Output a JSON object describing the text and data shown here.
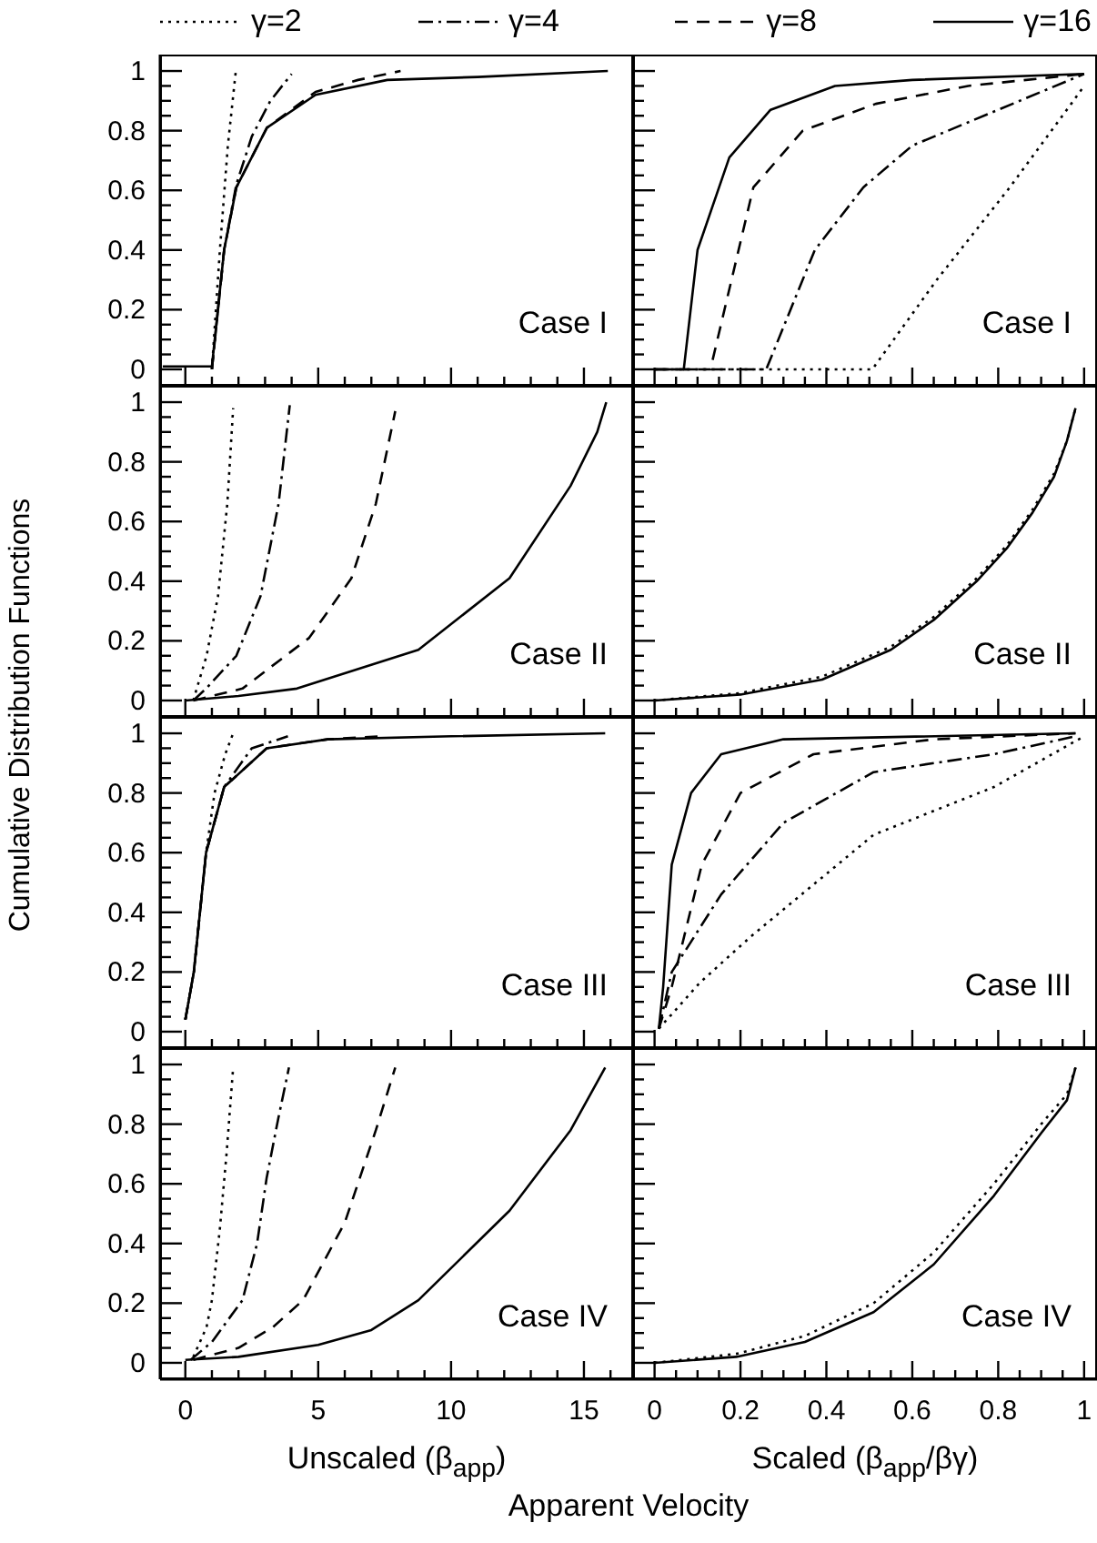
{
  "chart_data": [
    {
      "type": "line",
      "ylabel": "Cumulative Distribution Functions",
      "legend": "top",
      "tick_labels": "y",
      "annotations": [
        "Case I"
      ],
      "xlim": [
        -0.95,
        16.85
      ],
      "ylim": [
        -0.055,
        1.055
      ],
      "xticks": [
        0,
        {
          "value": 1,
          "label": null
        },
        {
          "value": 2,
          "label": null
        },
        {
          "value": 3,
          "label": null
        },
        {
          "value": 4,
          "label": null
        },
        5,
        {
          "value": 6,
          "label": null
        },
        {
          "value": 7,
          "label": null
        },
        {
          "value": 8,
          "label": null
        },
        {
          "value": 9,
          "label": null
        },
        10,
        {
          "value": 11,
          "label": null
        },
        {
          "value": 12,
          "label": null
        },
        {
          "value": 13,
          "label": null
        },
        {
          "value": 14,
          "label": null
        },
        15,
        {
          "value": 16,
          "label": null
        }
      ],
      "yticks": [
        0,
        {
          "value": 0.05,
          "label": null
        },
        {
          "value": 0.1,
          "label": null
        },
        {
          "value": 0.15,
          "label": null
        },
        0.2,
        {
          "value": 0.25,
          "label": null
        },
        {
          "value": 0.3,
          "label": null
        },
        {
          "value": 0.35,
          "label": null
        },
        0.4,
        {
          "value": 0.45,
          "label": null
        },
        {
          "value": 0.5,
          "label": null
        },
        {
          "value": 0.55,
          "label": null
        },
        0.6,
        {
          "value": 0.65,
          "label": null
        },
        {
          "value": 0.7,
          "label": null
        },
        {
          "value": 0.75,
          "label": null
        },
        0.8,
        {
          "value": 0.85,
          "label": null
        },
        {
          "value": 0.9,
          "label": null
        },
        {
          "value": 0.95,
          "label": null
        },
        1
      ],
      "series": [
        {
          "name": "γ=2",
          "color": "#000000",
          "line_style": "dotted",
          "x": [
            1.0,
            1.3,
            1.6,
            1.9
          ],
          "values": [
            0,
            0.4,
            0.75,
            1.0
          ]
        },
        {
          "name": "γ=4",
          "color": "#000000",
          "line_style": "dashdot",
          "x": [
            1.0,
            1.46,
            1.92,
            2.5,
            3.2,
            4.0
          ],
          "values": [
            0,
            0.4,
            0.62,
            0.78,
            0.9,
            0.99
          ]
        },
        {
          "name": "γ=8",
          "color": "#000000",
          "line_style": "dashed",
          "x": [
            1.0,
            1.46,
            1.92,
            3.07,
            4.9,
            6.5,
            8.1
          ],
          "values": [
            0,
            0.4,
            0.61,
            0.81,
            0.93,
            0.97,
            1.0
          ]
        },
        {
          "name": "γ=16",
          "color": "#000000",
          "line_style": "solid",
          "x": [
            -0.85,
            1.0,
            1.46,
            1.92,
            3.07,
            4.9,
            7.6,
            11,
            15.9
          ],
          "values": [
            0.01,
            0.01,
            0.4,
            0.61,
            0.81,
            0.92,
            0.97,
            0.98,
            1.0
          ]
        }
      ]
    },
    {
      "type": "line",
      "tick_labels": false,
      "annotations": [
        "Case I"
      ],
      "xlim": [
        -0.05,
        1.03
      ],
      "ylim": [
        -0.055,
        1.055
      ],
      "xticks": [
        0,
        {
          "value": 0.05,
          "label": null
        },
        {
          "value": 0.1,
          "label": null
        },
        {
          "value": 0.15,
          "label": null
        },
        0.2,
        {
          "value": 0.25,
          "label": null
        },
        {
          "value": 0.3,
          "label": null
        },
        {
          "value": 0.35,
          "label": null
        },
        0.4,
        {
          "value": 0.45,
          "label": null
        },
        {
          "value": 0.5,
          "label": null
        },
        {
          "value": 0.55,
          "label": null
        },
        0.6,
        {
          "value": 0.65,
          "label": null
        },
        {
          "value": 0.7,
          "label": null
        },
        {
          "value": 0.75,
          "label": null
        },
        0.8,
        {
          "value": 0.85,
          "label": null
        },
        {
          "value": 0.9,
          "label": null
        },
        {
          "value": 0.95,
          "label": null
        },
        1
      ],
      "yticks": [
        0,
        {
          "value": 0.05,
          "label": null
        },
        {
          "value": 0.1,
          "label": null
        },
        {
          "value": 0.15,
          "label": null
        },
        0.2,
        {
          "value": 0.25,
          "label": null
        },
        {
          "value": 0.3,
          "label": null
        },
        {
          "value": 0.35,
          "label": null
        },
        0.4,
        {
          "value": 0.45,
          "label": null
        },
        {
          "value": 0.5,
          "label": null
        },
        {
          "value": 0.55,
          "label": null
        },
        0.6,
        {
          "value": 0.65,
          "label": null
        },
        {
          "value": 0.7,
          "label": null
        },
        {
          "value": 0.75,
          "label": null
        },
        0.8,
        {
          "value": 0.85,
          "label": null
        },
        {
          "value": 0.9,
          "label": null
        },
        {
          "value": 0.95,
          "label": null
        },
        1
      ],
      "series": [
        {
          "color": "#000000",
          "line_style": "dotted",
          "x": [
            0,
            0.507,
            0.657,
            0.827,
            0.97,
            1.0
          ],
          "values": [
            0,
            0,
            0.3,
            0.61,
            0.89,
            0.95
          ]
        },
        {
          "color": "#000000",
          "line_style": "dashdot",
          "x": [
            0,
            0.26,
            0.373,
            0.486,
            0.6,
            0.8,
            1.0
          ],
          "values": [
            0,
            0,
            0.4,
            0.61,
            0.75,
            0.87,
            0.99
          ]
        },
        {
          "color": "#000000",
          "line_style": "dashed",
          "x": [
            0,
            0.13,
            0.23,
            0.345,
            0.515,
            0.73,
            1.0
          ],
          "values": [
            0,
            0,
            0.61,
            0.8,
            0.89,
            0.95,
            0.99
          ]
        },
        {
          "color": "#000000",
          "line_style": "solid",
          "x": [
            0,
            0.068,
            0.1,
            0.174,
            0.27,
            0.42,
            0.6,
            1.0
          ],
          "values": [
            0,
            0,
            0.4,
            0.71,
            0.87,
            0.95,
            0.97,
            0.99
          ]
        }
      ]
    },
    {
      "type": "line",
      "tick_labels": "y",
      "annotations": [
        "Case II"
      ],
      "xlim": [
        -0.95,
        16.85
      ],
      "ylim": [
        -0.055,
        1.055
      ],
      "xticks": [
        0,
        {
          "value": 1,
          "label": null
        },
        {
          "value": 2,
          "label": null
        },
        {
          "value": 3,
          "label": null
        },
        {
          "value": 4,
          "label": null
        },
        5,
        {
          "value": 6,
          "label": null
        },
        {
          "value": 7,
          "label": null
        },
        {
          "value": 8,
          "label": null
        },
        {
          "value": 9,
          "label": null
        },
        10,
        {
          "value": 11,
          "label": null
        },
        {
          "value": 12,
          "label": null
        },
        {
          "value": 13,
          "label": null
        },
        {
          "value": 14,
          "label": null
        },
        15,
        {
          "value": 16,
          "label": null
        }
      ],
      "yticks": [
        0,
        {
          "value": 0.05,
          "label": null
        },
        {
          "value": 0.1,
          "label": null
        },
        {
          "value": 0.15,
          "label": null
        },
        0.2,
        {
          "value": 0.25,
          "label": null
        },
        {
          "value": 0.3,
          "label": null
        },
        {
          "value": 0.35,
          "label": null
        },
        0.4,
        {
          "value": 0.45,
          "label": null
        },
        {
          "value": 0.5,
          "label": null
        },
        {
          "value": 0.55,
          "label": null
        },
        0.6,
        {
          "value": 0.65,
          "label": null
        },
        {
          "value": 0.7,
          "label": null
        },
        {
          "value": 0.75,
          "label": null
        },
        0.8,
        {
          "value": 0.85,
          "label": null
        },
        {
          "value": 0.9,
          "label": null
        },
        {
          "value": 0.95,
          "label": null
        },
        1
      ],
      "series": [
        {
          "color": "#000000",
          "line_style": "dotted",
          "x": [
            0.3,
            0.43,
            0.8,
            1.23,
            1.58,
            1.8
          ],
          "values": [
            0,
            0.04,
            0.15,
            0.35,
            0.66,
            0.98
          ]
        },
        {
          "color": "#000000",
          "line_style": "dashdot",
          "x": [
            0.3,
            0.78,
            1.92,
            2.83,
            3.51,
            3.93
          ],
          "values": [
            0,
            0.04,
            0.15,
            0.35,
            0.66,
            0.99
          ]
        },
        {
          "color": "#000000",
          "line_style": "dashed",
          "x": [
            0.3,
            2.15,
            4.66,
            6.25,
            7.17,
            7.9
          ],
          "values": [
            0,
            0.04,
            0.21,
            0.41,
            0.66,
            0.97
          ]
        },
        {
          "color": "#000000",
          "line_style": "solid",
          "x": [
            0,
            2,
            4.2,
            8.77,
            12.2,
            14.5,
            15.5,
            15.84
          ],
          "values": [
            0,
            0.015,
            0.04,
            0.17,
            0.41,
            0.72,
            0.9,
            1.0
          ]
        }
      ]
    },
    {
      "type": "line",
      "tick_labels": false,
      "annotations": [
        "Case II"
      ],
      "xlim": [
        -0.05,
        1.03
      ],
      "ylim": [
        -0.055,
        1.055
      ],
      "x": [
        0,
        0.2,
        0.39,
        0.55,
        0.65,
        0.75,
        0.82,
        0.88,
        0.93,
        0.96,
        0.98
      ],
      "xticks": [
        0,
        {
          "value": 0.05,
          "label": null
        },
        {
          "value": 0.1,
          "label": null
        },
        {
          "value": 0.15,
          "label": null
        },
        0.2,
        {
          "value": 0.25,
          "label": null
        },
        {
          "value": 0.3,
          "label": null
        },
        {
          "value": 0.35,
          "label": null
        },
        0.4,
        {
          "value": 0.45,
          "label": null
        },
        {
          "value": 0.5,
          "label": null
        },
        {
          "value": 0.55,
          "label": null
        },
        0.6,
        {
          "value": 0.65,
          "label": null
        },
        {
          "value": 0.7,
          "label": null
        },
        {
          "value": 0.75,
          "label": null
        },
        0.8,
        {
          "value": 0.85,
          "label": null
        },
        {
          "value": 0.9,
          "label": null
        },
        {
          "value": 0.95,
          "label": null
        },
        1
      ],
      "yticks": [
        0,
        {
          "value": 0.05,
          "label": null
        },
        {
          "value": 0.1,
          "label": null
        },
        {
          "value": 0.15,
          "label": null
        },
        0.2,
        {
          "value": 0.25,
          "label": null
        },
        {
          "value": 0.3,
          "label": null
        },
        {
          "value": 0.35,
          "label": null
        },
        0.4,
        {
          "value": 0.45,
          "label": null
        },
        {
          "value": 0.5,
          "label": null
        },
        {
          "value": 0.55,
          "label": null
        },
        0.6,
        {
          "value": 0.65,
          "label": null
        },
        {
          "value": 0.7,
          "label": null
        },
        {
          "value": 0.75,
          "label": null
        },
        0.8,
        {
          "value": 0.85,
          "label": null
        },
        {
          "value": 0.9,
          "label": null
        },
        {
          "value": 0.95,
          "label": null
        },
        1
      ],
      "series": [
        {
          "color": "#000000",
          "line_style": "dotted",
          "values": [
            0,
            0.025,
            0.08,
            0.18,
            0.28,
            0.41,
            0.52,
            0.64,
            0.76,
            0.87,
            0.98
          ]
        },
        {
          "color": "#000000",
          "line_style": "dashdot",
          "values": [
            null,
            null,
            null,
            null,
            null,
            null,
            null,
            null,
            null,
            null,
            null
          ]
        },
        {
          "color": "#000000",
          "line_style": "dashed",
          "values": [
            null,
            null,
            null,
            null,
            null,
            null,
            null,
            null,
            null,
            null,
            null
          ]
        },
        {
          "color": "#000000",
          "line_style": "solid",
          "values": [
            0,
            0.02,
            0.07,
            0.17,
            0.27,
            0.4,
            0.51,
            0.63,
            0.75,
            0.87,
            0.98
          ]
        }
      ]
    },
    {
      "type": "line",
      "tick_labels": "y",
      "annotations": [
        "Case III"
      ],
      "xlim": [
        -0.95,
        16.85
      ],
      "ylim": [
        -0.055,
        1.055
      ],
      "xticks": [
        0,
        {
          "value": 1,
          "label": null
        },
        {
          "value": 2,
          "label": null
        },
        {
          "value": 3,
          "label": null
        },
        {
          "value": 4,
          "label": null
        },
        5,
        {
          "value": 6,
          "label": null
        },
        {
          "value": 7,
          "label": null
        },
        {
          "value": 8,
          "label": null
        },
        {
          "value": 9,
          "label": null
        },
        10,
        {
          "value": 11,
          "label": null
        },
        {
          "value": 12,
          "label": null
        },
        {
          "value": 13,
          "label": null
        },
        {
          "value": 14,
          "label": null
        },
        15,
        {
          "value": 16,
          "label": null
        }
      ],
      "yticks": [
        0,
        {
          "value": 0.05,
          "label": null
        },
        {
          "value": 0.1,
          "label": null
        },
        {
          "value": 0.15,
          "label": null
        },
        0.2,
        {
          "value": 0.25,
          "label": null
        },
        {
          "value": 0.3,
          "label": null
        },
        {
          "value": 0.35,
          "label": null
        },
        0.4,
        {
          "value": 0.45,
          "label": null
        },
        {
          "value": 0.5,
          "label": null
        },
        {
          "value": 0.55,
          "label": null
        },
        0.6,
        {
          "value": 0.65,
          "label": null
        },
        {
          "value": 0.7,
          "label": null
        },
        {
          "value": 0.75,
          "label": null
        },
        0.8,
        {
          "value": 0.85,
          "label": null
        },
        {
          "value": 0.9,
          "label": null
        },
        {
          "value": 0.95,
          "label": null
        },
        1
      ],
      "series": [
        {
          "color": "#000000",
          "line_style": "dotted",
          "x": [
            0,
            0.32,
            0.78,
            1.1,
            1.5,
            1.8
          ],
          "values": [
            0.04,
            0.2,
            0.6,
            0.8,
            0.93,
            1.0
          ]
        },
        {
          "color": "#000000",
          "line_style": "dashdot",
          "x": [
            0,
            0.32,
            0.78,
            1.46,
            2.5,
            3.86
          ],
          "values": [
            0.04,
            0.2,
            0.6,
            0.82,
            0.95,
            0.99
          ]
        },
        {
          "color": "#000000",
          "line_style": "dashed",
          "x": [
            0,
            0.32,
            0.78,
            1.46,
            3.06,
            5.35,
            7.4
          ],
          "values": [
            0.04,
            0.2,
            0.6,
            0.82,
            0.95,
            0.98,
            0.99
          ]
        },
        {
          "color": "#000000",
          "line_style": "solid",
          "x": [
            0,
            0.32,
            0.78,
            1.46,
            3.06,
            5.35,
            10,
            15.8
          ],
          "values": [
            0.04,
            0.2,
            0.6,
            0.82,
            0.95,
            0.98,
            0.99,
            1.0
          ]
        }
      ]
    },
    {
      "type": "line",
      "tick_labels": false,
      "annotations": [
        "Case III"
      ],
      "xlim": [
        -0.05,
        1.03
      ],
      "ylim": [
        -0.055,
        1.055
      ],
      "xticks": [
        0,
        {
          "value": 0.05,
          "label": null
        },
        {
          "value": 0.1,
          "label": null
        },
        {
          "value": 0.15,
          "label": null
        },
        0.2,
        {
          "value": 0.25,
          "label": null
        },
        {
          "value": 0.3,
          "label": null
        },
        {
          "value": 0.35,
          "label": null
        },
        0.4,
        {
          "value": 0.45,
          "label": null
        },
        {
          "value": 0.5,
          "label": null
        },
        {
          "value": 0.55,
          "label": null
        },
        0.6,
        {
          "value": 0.65,
          "label": null
        },
        {
          "value": 0.7,
          "label": null
        },
        {
          "value": 0.75,
          "label": null
        },
        0.8,
        {
          "value": 0.85,
          "label": null
        },
        {
          "value": 0.9,
          "label": null
        },
        {
          "value": 0.95,
          "label": null
        },
        1
      ],
      "yticks": [
        0,
        {
          "value": 0.05,
          "label": null
        },
        {
          "value": 0.1,
          "label": null
        },
        {
          "value": 0.15,
          "label": null
        },
        0.2,
        {
          "value": 0.25,
          "label": null
        },
        {
          "value": 0.3,
          "label": null
        },
        {
          "value": 0.35,
          "label": null
        },
        0.4,
        {
          "value": 0.45,
          "label": null
        },
        {
          "value": 0.5,
          "label": null
        },
        {
          "value": 0.55,
          "label": null
        },
        0.6,
        {
          "value": 0.65,
          "label": null
        },
        {
          "value": 0.7,
          "label": null
        },
        {
          "value": 0.75,
          "label": null
        },
        0.8,
        {
          "value": 0.85,
          "label": null
        },
        {
          "value": 0.9,
          "label": null
        },
        {
          "value": 0.95,
          "label": null
        },
        1
      ],
      "series": [
        {
          "color": "#000000",
          "line_style": "dotted",
          "x": [
            0.01,
            0.106,
            0.225,
            0.51,
            0.79,
            0.975,
            1.0
          ],
          "values": [
            0.01,
            0.165,
            0.32,
            0.66,
            0.82,
            0.97,
            0.99
          ]
        },
        {
          "color": "#000000",
          "line_style": "dashdot",
          "x": [
            0.01,
            0.04,
            0.155,
            0.3,
            0.51,
            0.79,
            0.98
          ],
          "values": [
            0.01,
            0.2,
            0.46,
            0.7,
            0.87,
            0.93,
            0.99
          ]
        },
        {
          "color": "#000000",
          "line_style": "dashed",
          "x": [
            0.01,
            0.04,
            0.11,
            0.2,
            0.37,
            0.65,
            0.98
          ],
          "values": [
            0.01,
            0.15,
            0.56,
            0.8,
            0.93,
            0.98,
            1.0
          ]
        },
        {
          "color": "#000000",
          "line_style": "solid",
          "x": [
            0.01,
            0.02,
            0.04,
            0.085,
            0.155,
            0.3,
            0.98
          ],
          "values": [
            0.01,
            0.15,
            0.56,
            0.8,
            0.93,
            0.98,
            1.0
          ]
        }
      ]
    },
    {
      "type": "line",
      "xlabel": "Unscaled (β$_{app}$)",
      "annotations": [
        "Case IV",
        "Apparent Velocity"
      ],
      "xlim": [
        -0.95,
        16.85
      ],
      "ylim": [
        -0.055,
        1.055
      ],
      "xticks": [
        0,
        {
          "value": 1,
          "label": null
        },
        {
          "value": 2,
          "label": null
        },
        {
          "value": 3,
          "label": null
        },
        {
          "value": 4,
          "label": null
        },
        5,
        {
          "value": 6,
          "label": null
        },
        {
          "value": 7,
          "label": null
        },
        {
          "value": 8,
          "label": null
        },
        {
          "value": 9,
          "label": null
        },
        10,
        {
          "value": 11,
          "label": null
        },
        {
          "value": 12,
          "label": null
        },
        {
          "value": 13,
          "label": null
        },
        {
          "value": 14,
          "label": null
        },
        15,
        {
          "value": 16,
          "label": null
        }
      ],
      "yticks": [
        0,
        {
          "value": 0.05,
          "label": null
        },
        {
          "value": 0.1,
          "label": null
        },
        {
          "value": 0.15,
          "label": null
        },
        0.2,
        {
          "value": 0.25,
          "label": null
        },
        {
          "value": 0.3,
          "label": null
        },
        {
          "value": 0.35,
          "label": null
        },
        0.4,
        {
          "value": 0.45,
          "label": null
        },
        {
          "value": 0.5,
          "label": null
        },
        {
          "value": 0.55,
          "label": null
        },
        0.6,
        {
          "value": 0.65,
          "label": null
        },
        {
          "value": 0.7,
          "label": null
        },
        {
          "value": 0.75,
          "label": null
        },
        0.8,
        {
          "value": 0.85,
          "label": null
        },
        {
          "value": 0.9,
          "label": null
        },
        {
          "value": 0.95,
          "label": null
        },
        1
      ],
      "series": [
        {
          "color": "#000000",
          "line_style": "dotted",
          "x": [
            0.3,
            0.8,
            1.0,
            1.3,
            1.55,
            1.8
          ],
          "values": [
            0.02,
            0.12,
            0.21,
            0.45,
            0.7,
            0.99
          ]
        },
        {
          "color": "#000000",
          "line_style": "dashdot",
          "x": [
            0.2,
            1.0,
            2.15,
            2.7,
            3.06,
            3.5,
            3.9
          ],
          "values": [
            0.01,
            0.07,
            0.21,
            0.4,
            0.62,
            0.82,
            0.99
          ]
        },
        {
          "color": "#000000",
          "line_style": "dashed",
          "x": [
            0.3,
            2,
            3.3,
            4.43,
            6.0,
            7.17,
            7.9
          ],
          "values": [
            0.01,
            0.05,
            0.12,
            0.21,
            0.47,
            0.78,
            0.99
          ]
        },
        {
          "color": "#000000",
          "line_style": "solid",
          "x": [
            0,
            2,
            5,
            7,
            8.77,
            12.2,
            14.5,
            15.8
          ],
          "values": [
            0.01,
            0.02,
            0.06,
            0.11,
            0.21,
            0.51,
            0.78,
            0.99
          ]
        }
      ]
    },
    {
      "type": "line",
      "xlabel": "Scaled (β$_{app}$/βγ)",
      "tick_labels": "x",
      "annotations": [
        "Case IV"
      ],
      "xlim": [
        -0.05,
        1.03
      ],
      "ylim": [
        -0.055,
        1.055
      ],
      "x": [
        0,
        0.19,
        0.35,
        0.51,
        0.65,
        0.79,
        0.9,
        0.96,
        0.98
      ],
      "xticks": [
        0,
        {
          "value": 0.05,
          "label": null
        },
        {
          "value": 0.1,
          "label": null
        },
        {
          "value": 0.15,
          "label": null
        },
        0.2,
        {
          "value": 0.25,
          "label": null
        },
        {
          "value": 0.3,
          "label": null
        },
        {
          "value": 0.35,
          "label": null
        },
        0.4,
        {
          "value": 0.45,
          "label": null
        },
        {
          "value": 0.5,
          "label": null
        },
        {
          "value": 0.55,
          "label": null
        },
        0.6,
        {
          "value": 0.65,
          "label": null
        },
        {
          "value": 0.7,
          "label": null
        },
        {
          "value": 0.75,
          "label": null
        },
        0.8,
        {
          "value": 0.85,
          "label": null
        },
        {
          "value": 0.9,
          "label": null
        },
        {
          "value": 0.95,
          "label": null
        },
        1
      ],
      "yticks": [
        0,
        {
          "value": 0.05,
          "label": null
        },
        {
          "value": 0.1,
          "label": null
        },
        {
          "value": 0.15,
          "label": null
        },
        0.2,
        {
          "value": 0.25,
          "label": null
        },
        {
          "value": 0.3,
          "label": null
        },
        {
          "value": 0.35,
          "label": null
        },
        0.4,
        {
          "value": 0.45,
          "label": null
        },
        {
          "value": 0.5,
          "label": null
        },
        {
          "value": 0.55,
          "label": null
        },
        0.6,
        {
          "value": 0.65,
          "label": null
        },
        {
          "value": 0.7,
          "label": null
        },
        {
          "value": 0.75,
          "label": null
        },
        0.8,
        {
          "value": 0.85,
          "label": null
        },
        {
          "value": 0.9,
          "label": null
        },
        {
          "value": 0.95,
          "label": null
        },
        1
      ],
      "series": [
        {
          "color": "#000000",
          "line_style": "dotted",
          "values": [
            0,
            0.03,
            0.09,
            0.2,
            0.37,
            0.6,
            0.8,
            0.9,
            0.99
          ]
        },
        {
          "color": "#000000",
          "line_style": "dashdot",
          "values": [
            null,
            null,
            null,
            null,
            null,
            null,
            null,
            null,
            null
          ]
        },
        {
          "color": "#000000",
          "line_style": "dashed",
          "values": [
            null,
            null,
            null,
            null,
            null,
            null,
            null,
            null,
            null
          ]
        },
        {
          "color": "#000000",
          "line_style": "solid",
          "values": [
            0,
            0.02,
            0.07,
            0.17,
            0.33,
            0.56,
            0.77,
            0.88,
            0.99
          ]
        }
      ]
    }
  ]
}
